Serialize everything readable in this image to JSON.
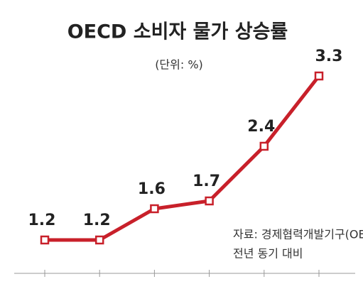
{
  "chart_data": {
    "type": "line",
    "title": "OECD 소비자 물가 상승률",
    "subtitle": "(단위: %)",
    "categories": [
      null,
      null,
      null,
      null,
      null,
      null
    ],
    "series": [
      {
        "color": "#c8202a",
        "values": [
          1.2,
          1.2,
          1.6,
          1.7,
          2.4,
          3.3
        ]
      }
    ],
    "source": [
      "자료: 경제협력개발기구(OECD),",
      "전년 동기 대비"
    ]
  }
}
